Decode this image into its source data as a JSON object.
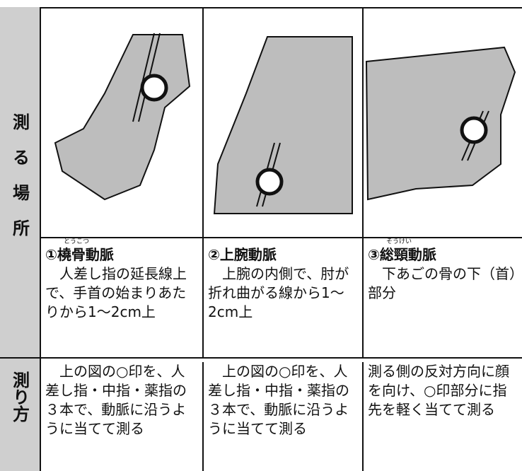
{
  "table": {
    "row_headers": [
      "測る場所",
      "測り方"
    ],
    "columns": [
      {
        "ruby": "とうこつ",
        "title": "①橈骨動脈",
        "description": "人差し指の延長線上で、手首の始まりあたりから1〜2cm上",
        "method": "上の図の○印を、人差し指・中指・薬指の３本で、動脈に沿うように当てて測る"
      },
      {
        "title": "②上腕動脈",
        "description": "上腕の内側で、肘が折れ曲がる線から1〜2cm上",
        "method": "上の図の○印を、人差し指・中指・薬指の３本で、動脈に沿うように当てて測る"
      },
      {
        "ruby": "そうけい",
        "title": "③総頸動脈",
        "description": "下あごの骨の下（首）部分",
        "method": "測る側の反対方向に顔を向け、○印部分に指先を軽く当てて測る"
      }
    ]
  }
}
